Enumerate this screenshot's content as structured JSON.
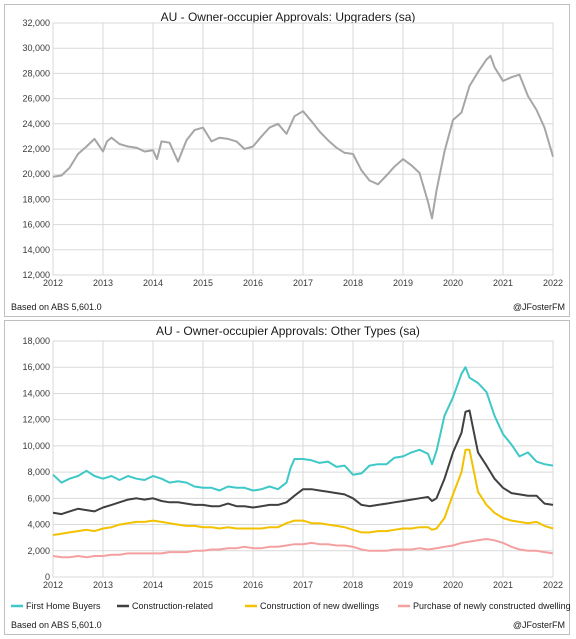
{
  "chart_data": [
    {
      "type": "line",
      "title": "AU - Owner-occupier Approvals: Upgraders (sa)",
      "source_note": "Based on ABS 5,601.0",
      "credit": "@JFosterFM",
      "xlim": [
        2012,
        2022
      ],
      "ylim": [
        12000,
        32000
      ],
      "x_ticks": [
        "2012",
        "2013",
        "2014",
        "2015",
        "2016",
        "2017",
        "2018",
        "2019",
        "2020",
        "2021",
        "2022"
      ],
      "y_ticks": [
        "12,000",
        "14,000",
        "16,000",
        "18,000",
        "20,000",
        "22,000",
        "24,000",
        "26,000",
        "28,000",
        "30,000",
        "32,000"
      ],
      "grid": true,
      "series": [
        {
          "color": "#a6a6a6",
          "x": [
            2012.0,
            2012.17,
            2012.33,
            2012.5,
            2012.67,
            2012.83,
            2013.0,
            2013.08,
            2013.17,
            2013.33,
            2013.5,
            2013.67,
            2013.83,
            2014.0,
            2014.08,
            2014.17,
            2014.33,
            2014.5,
            2014.67,
            2014.83,
            2015.0,
            2015.17,
            2015.33,
            2015.5,
            2015.67,
            2015.83,
            2016.0,
            2016.17,
            2016.33,
            2016.5,
            2016.67,
            2016.83,
            2017.0,
            2017.17,
            2017.33,
            2017.5,
            2017.67,
            2017.83,
            2018.0,
            2018.17,
            2018.33,
            2018.5,
            2018.67,
            2018.83,
            2019.0,
            2019.17,
            2019.33,
            2019.5,
            2019.58,
            2019.67,
            2019.83,
            2020.0,
            2020.17,
            2020.33,
            2020.5,
            2020.67,
            2020.75,
            2020.83,
            2021.0,
            2021.17,
            2021.33,
            2021.5,
            2021.67,
            2021.83,
            2022.0
          ],
          "y": [
            19800,
            19900,
            20500,
            21600,
            22200,
            22800,
            21800,
            22600,
            22900,
            22400,
            22200,
            22100,
            21800,
            21900,
            21200,
            22600,
            22500,
            21000,
            22700,
            23500,
            23700,
            22600,
            22900,
            22800,
            22600,
            22000,
            22200,
            23000,
            23700,
            24000,
            23200,
            24600,
            25000,
            24200,
            23400,
            22700,
            22100,
            21700,
            21600,
            20300,
            19500,
            19200,
            19900,
            20600,
            21200,
            20700,
            20100,
            17800,
            16500,
            18700,
            21800,
            24300,
            24900,
            27000,
            28100,
            29100,
            29400,
            28500,
            27400,
            27700,
            27900,
            26200,
            25100,
            23700,
            21400
          ]
        }
      ]
    },
    {
      "type": "line",
      "title": "AU - Owner-occupier Approvals: Other Types (sa)",
      "source_note": "Based on ABS 5,601.0",
      "credit": "@JFosterFM",
      "xlim": [
        2012,
        2022
      ],
      "ylim": [
        0,
        18000
      ],
      "x_ticks": [
        "2012",
        "2013",
        "2014",
        "2015",
        "2016",
        "2017",
        "2018",
        "2019",
        "2020",
        "2021",
        "2022"
      ],
      "y_ticks": [
        "0",
        "2,000",
        "4,000",
        "6,000",
        "8,000",
        "10,000",
        "12,000",
        "14,000",
        "16,000",
        "18,000"
      ],
      "grid": true,
      "legend": "bottom",
      "series": [
        {
          "name": "First Home Buyers",
          "color": "#3fc8c8",
          "x": [
            2012.0,
            2012.17,
            2012.33,
            2012.5,
            2012.67,
            2012.83,
            2013.0,
            2013.17,
            2013.33,
            2013.5,
            2013.67,
            2013.83,
            2014.0,
            2014.17,
            2014.33,
            2014.5,
            2014.67,
            2014.83,
            2015.0,
            2015.17,
            2015.33,
            2015.5,
            2015.67,
            2015.83,
            2016.0,
            2016.17,
            2016.33,
            2016.5,
            2016.67,
            2016.75,
            2016.83,
            2017.0,
            2017.17,
            2017.33,
            2017.5,
            2017.67,
            2017.83,
            2018.0,
            2018.17,
            2018.33,
            2018.5,
            2018.67,
            2018.83,
            2019.0,
            2019.17,
            2019.33,
            2019.5,
            2019.58,
            2019.67,
            2019.83,
            2020.0,
            2020.17,
            2020.25,
            2020.33,
            2020.5,
            2020.67,
            2020.83,
            2021.0,
            2021.17,
            2021.33,
            2021.5,
            2021.67,
            2021.83,
            2022.0
          ],
          "y": [
            7800,
            7200,
            7500,
            7700,
            8100,
            7700,
            7500,
            7700,
            7400,
            7700,
            7500,
            7400,
            7700,
            7500,
            7200,
            7300,
            7200,
            6900,
            6800,
            6800,
            6600,
            6900,
            6800,
            6800,
            6600,
            6700,
            6900,
            6700,
            7200,
            8300,
            9000,
            9000,
            8900,
            8700,
            8800,
            8400,
            8500,
            7800,
            7900,
            8500,
            8600,
            8600,
            9100,
            9200,
            9500,
            9700,
            9400,
            8600,
            9600,
            12300,
            13700,
            15500,
            16000,
            15200,
            14800,
            14100,
            12300,
            10900,
            10100,
            9200,
            9500,
            8800,
            8600,
            8500
          ]
        },
        {
          "name": "Construction-related",
          "color": "#404040",
          "x": [
            2012.0,
            2012.17,
            2012.33,
            2012.5,
            2012.67,
            2012.83,
            2013.0,
            2013.17,
            2013.33,
            2013.5,
            2013.67,
            2013.83,
            2014.0,
            2014.17,
            2014.33,
            2014.5,
            2014.67,
            2014.83,
            2015.0,
            2015.17,
            2015.33,
            2015.5,
            2015.67,
            2015.83,
            2016.0,
            2016.17,
            2016.33,
            2016.5,
            2016.67,
            2016.83,
            2017.0,
            2017.17,
            2017.33,
            2017.5,
            2017.67,
            2017.83,
            2018.0,
            2018.17,
            2018.33,
            2018.5,
            2018.67,
            2018.83,
            2019.0,
            2019.17,
            2019.33,
            2019.5,
            2019.58,
            2019.67,
            2019.83,
            2020.0,
            2020.17,
            2020.25,
            2020.33,
            2020.42,
            2020.5,
            2020.67,
            2020.83,
            2021.0,
            2021.17,
            2021.33,
            2021.5,
            2021.67,
            2021.83,
            2022.0
          ],
          "y": [
            4900,
            4800,
            5000,
            5200,
            5100,
            5000,
            5300,
            5500,
            5700,
            5900,
            6000,
            5900,
            6000,
            5800,
            5700,
            5700,
            5600,
            5500,
            5500,
            5400,
            5400,
            5600,
            5400,
            5400,
            5300,
            5400,
            5500,
            5500,
            5700,
            6200,
            6700,
            6700,
            6600,
            6500,
            6400,
            6300,
            6000,
            5500,
            5400,
            5500,
            5600,
            5700,
            5800,
            5900,
            6000,
            6100,
            5800,
            6000,
            7500,
            9500,
            11000,
            12600,
            12700,
            11000,
            9500,
            8500,
            7500,
            6800,
            6400,
            6300,
            6200,
            6200,
            5600,
            5500
          ]
        },
        {
          "name": "Construction of new dwellings",
          "color": "#f2c200",
          "x": [
            2012.0,
            2012.17,
            2012.33,
            2012.5,
            2012.67,
            2012.83,
            2013.0,
            2013.17,
            2013.33,
            2013.5,
            2013.67,
            2013.83,
            2014.0,
            2014.17,
            2014.33,
            2014.5,
            2014.67,
            2014.83,
            2015.0,
            2015.17,
            2015.33,
            2015.5,
            2015.67,
            2015.83,
            2016.0,
            2016.17,
            2016.33,
            2016.5,
            2016.67,
            2016.83,
            2017.0,
            2017.17,
            2017.33,
            2017.5,
            2017.67,
            2017.83,
            2018.0,
            2018.17,
            2018.33,
            2018.5,
            2018.67,
            2018.83,
            2019.0,
            2019.17,
            2019.33,
            2019.5,
            2019.58,
            2019.67,
            2019.83,
            2020.0,
            2020.17,
            2020.25,
            2020.33,
            2020.42,
            2020.5,
            2020.67,
            2020.83,
            2021.0,
            2021.17,
            2021.33,
            2021.5,
            2021.67,
            2021.83,
            2022.0
          ],
          "y": [
            3200,
            3300,
            3400,
            3500,
            3600,
            3500,
            3700,
            3800,
            4000,
            4100,
            4200,
            4200,
            4300,
            4200,
            4100,
            4000,
            3900,
            3900,
            3800,
            3800,
            3700,
            3800,
            3700,
            3700,
            3700,
            3700,
            3800,
            3800,
            4100,
            4300,
            4300,
            4100,
            4100,
            4000,
            3900,
            3800,
            3600,
            3400,
            3400,
            3500,
            3500,
            3600,
            3700,
            3700,
            3800,
            3800,
            3600,
            3700,
            4500,
            6300,
            8000,
            9700,
            9700,
            8000,
            6500,
            5500,
            4900,
            4500,
            4300,
            4200,
            4100,
            4200,
            3900,
            3700
          ]
        },
        {
          "name": "Purchase of newly constructed dwellings",
          "color": "#f4a0a0",
          "x": [
            2012.0,
            2012.17,
            2012.33,
            2012.5,
            2012.67,
            2012.83,
            2013.0,
            2013.17,
            2013.33,
            2013.5,
            2013.67,
            2013.83,
            2014.0,
            2014.17,
            2014.33,
            2014.5,
            2014.67,
            2014.83,
            2015.0,
            2015.17,
            2015.33,
            2015.5,
            2015.67,
            2015.83,
            2016.0,
            2016.17,
            2016.33,
            2016.5,
            2016.67,
            2016.83,
            2017.0,
            2017.17,
            2017.33,
            2017.5,
            2017.67,
            2017.83,
            2018.0,
            2018.17,
            2018.33,
            2018.5,
            2018.67,
            2018.83,
            2019.0,
            2019.17,
            2019.33,
            2019.5,
            2019.67,
            2019.83,
            2020.0,
            2020.17,
            2020.33,
            2020.5,
            2020.67,
            2020.83,
            2021.0,
            2021.17,
            2021.33,
            2021.5,
            2021.67,
            2021.83,
            2022.0
          ],
          "y": [
            1600,
            1500,
            1500,
            1600,
            1500,
            1600,
            1600,
            1700,
            1700,
            1800,
            1800,
            1800,
            1800,
            1800,
            1900,
            1900,
            1900,
            2000,
            2000,
            2100,
            2100,
            2200,
            2200,
            2300,
            2200,
            2200,
            2300,
            2300,
            2400,
            2500,
            2500,
            2600,
            2500,
            2500,
            2400,
            2400,
            2300,
            2100,
            2000,
            2000,
            2000,
            2100,
            2100,
            2100,
            2200,
            2100,
            2200,
            2300,
            2400,
            2600,
            2700,
            2800,
            2900,
            2800,
            2600,
            2300,
            2100,
            2000,
            2000,
            1900,
            1800
          ]
        }
      ]
    }
  ]
}
